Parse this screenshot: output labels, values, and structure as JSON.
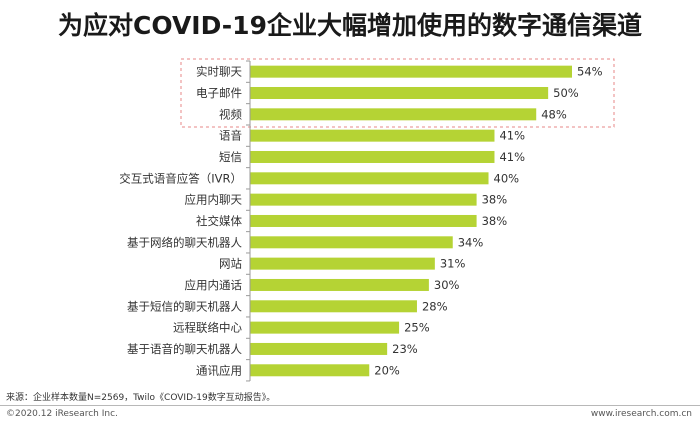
{
  "colors": {
    "bar": "#b5d334",
    "axis": "#9a9a9a",
    "highlight_box": "#e78787"
  },
  "chart_data": {
    "type": "bar",
    "orientation": "horizontal",
    "title": "为应对COVID-19企业大幅增加使用的数字通信渠道",
    "categories": [
      "实时聊天",
      "电子邮件",
      "视频",
      "语音",
      "短信",
      "交互式语音应答（IVR）",
      "应用内聊天",
      "社交媒体",
      "基于网络的聊天机器人",
      "网站",
      "应用内通话",
      "基于短信的聊天机器人",
      "远程联络中心",
      "基于语音的聊天机器人",
      "通讯应用"
    ],
    "values": [
      54,
      50,
      48,
      41,
      41,
      40,
      38,
      38,
      34,
      31,
      30,
      28,
      25,
      23,
      20
    ],
    "value_labels": [
      "54%",
      "50%",
      "48%",
      "41%",
      "41%",
      "40%",
      "38%",
      "38%",
      "34%",
      "31%",
      "30%",
      "28%",
      "25%",
      "23%",
      "20%"
    ],
    "unit": "%",
    "xlim": [
      0,
      60
    ],
    "grid": false,
    "highlighted_categories": [
      "实时聊天",
      "电子邮件",
      "视频"
    ]
  },
  "footer": {
    "source": "来源：企业样本数量N=2569，Twilo《COVID-19数字互动报告》。",
    "copyright": "©2020.12 iResearch Inc.",
    "website": "www.iresearch.com.cn"
  }
}
